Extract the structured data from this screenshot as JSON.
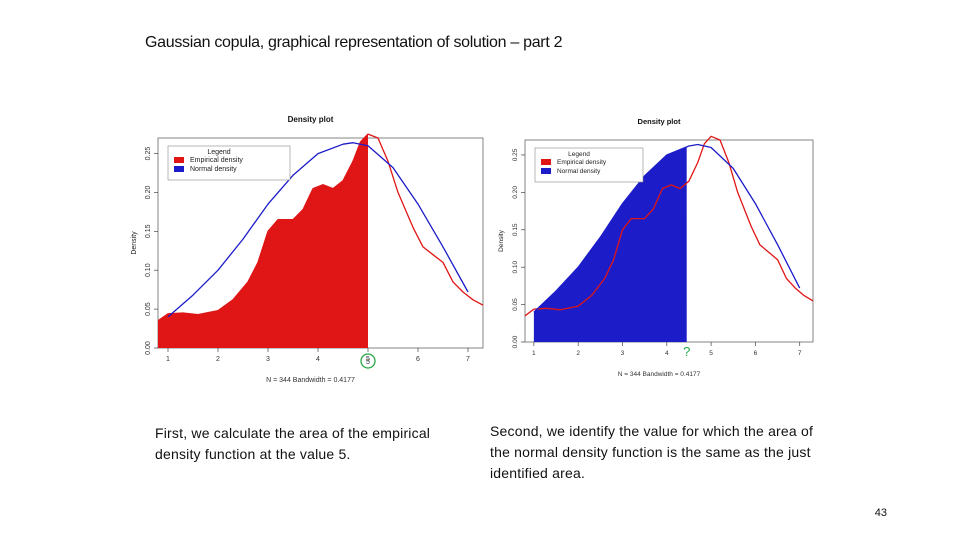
{
  "slide": {
    "title": "Gaussian copula, graphical representation of solution – part 2",
    "caption_left": "First, we calculate the area of the empirical density function at the value 5.",
    "caption_right": "Second, we identify the value for which the area of the normal density function is the same as the just identified area.",
    "page_number": "43"
  },
  "colors": {
    "empirical": "#e01515",
    "normal": "#1c1cc8",
    "marker_circle": "#22aa44",
    "marker_question": "#22aa44"
  },
  "chart_data": [
    {
      "type": "line",
      "title": "Density plot",
      "xlabel": "N = 344   Bandwidth = 0.4177",
      "ylabel": "Density",
      "xlim": [
        0.8,
        7.3
      ],
      "ylim": [
        0,
        0.27
      ],
      "x_ticks": [
        "1",
        "2",
        "3",
        "4",
        "5",
        "6",
        "7"
      ],
      "y_ticks": [
        "0.00",
        "0.05",
        "0.10",
        "0.15",
        "0.20",
        "0.25"
      ],
      "legend": {
        "title": "Legend",
        "position": "top-left",
        "entries": [
          "Empirical density",
          "Normal density"
        ]
      },
      "marker": {
        "label": "5",
        "x": 5
      },
      "shaded": {
        "series": "Empirical density",
        "x_from": 0.8,
        "x_to": 5
      },
      "series": [
        {
          "name": "Empirical density",
          "x": [
            0.8,
            1.0,
            1.3,
            1.6,
            2.0,
            2.3,
            2.6,
            2.8,
            3.0,
            3.2,
            3.5,
            3.7,
            3.9,
            4.1,
            4.3,
            4.5,
            4.7,
            4.85,
            5.0,
            5.2,
            5.4,
            5.6,
            5.9,
            6.1,
            6.3,
            6.5,
            6.7,
            6.9,
            7.1,
            7.3
          ],
          "y": [
            0.035,
            0.044,
            0.045,
            0.043,
            0.048,
            0.062,
            0.085,
            0.11,
            0.15,
            0.165,
            0.165,
            0.178,
            0.205,
            0.21,
            0.205,
            0.215,
            0.24,
            0.265,
            0.275,
            0.27,
            0.24,
            0.2,
            0.155,
            0.13,
            0.12,
            0.11,
            0.085,
            0.072,
            0.062,
            0.055
          ]
        },
        {
          "name": "Normal density",
          "x": [
            1.0,
            1.5,
            2.0,
            2.5,
            3.0,
            3.5,
            4.0,
            4.5,
            4.7,
            5.0,
            5.5,
            6.0,
            6.5,
            7.0
          ],
          "y": [
            0.04,
            0.068,
            0.1,
            0.14,
            0.185,
            0.222,
            0.25,
            0.262,
            0.264,
            0.26,
            0.232,
            0.185,
            0.13,
            0.072
          ]
        }
      ]
    },
    {
      "type": "line",
      "title": "Density plot",
      "xlabel": "N = 344   Bandwidth = 0.4177",
      "ylabel": "Density",
      "xlim": [
        0.8,
        7.3
      ],
      "ylim": [
        0,
        0.27
      ],
      "x_ticks": [
        "1",
        "2",
        "3",
        "4",
        "5",
        "6",
        "7"
      ],
      "y_ticks": [
        "0.00",
        "0.05",
        "0.10",
        "0.15",
        "0.20",
        "0.25"
      ],
      "legend": {
        "title": "Legend",
        "position": "top-left",
        "entries": [
          "Empirical density",
          "Normal density"
        ]
      },
      "marker": {
        "label": "?",
        "x": 4.45
      },
      "shaded": {
        "series": "Normal density",
        "x_from": 1.0,
        "x_to": 4.45
      },
      "series": [
        {
          "name": "Empirical density",
          "x": [
            0.8,
            1.0,
            1.3,
            1.6,
            2.0,
            2.3,
            2.6,
            2.8,
            3.0,
            3.2,
            3.5,
            3.7,
            3.9,
            4.1,
            4.3,
            4.5,
            4.7,
            4.85,
            5.0,
            5.2,
            5.4,
            5.6,
            5.9,
            6.1,
            6.3,
            6.5,
            6.7,
            6.9,
            7.1,
            7.3
          ],
          "y": [
            0.035,
            0.044,
            0.045,
            0.043,
            0.048,
            0.062,
            0.085,
            0.11,
            0.15,
            0.165,
            0.165,
            0.178,
            0.205,
            0.21,
            0.205,
            0.215,
            0.24,
            0.265,
            0.275,
            0.27,
            0.24,
            0.2,
            0.155,
            0.13,
            0.12,
            0.11,
            0.085,
            0.072,
            0.062,
            0.055
          ]
        },
        {
          "name": "Normal density",
          "x": [
            1.0,
            1.5,
            2.0,
            2.5,
            3.0,
            3.5,
            4.0,
            4.5,
            4.7,
            5.0,
            5.5,
            6.0,
            6.5,
            7.0
          ],
          "y": [
            0.04,
            0.068,
            0.1,
            0.14,
            0.185,
            0.222,
            0.25,
            0.262,
            0.264,
            0.26,
            0.232,
            0.185,
            0.13,
            0.072
          ]
        }
      ]
    }
  ]
}
